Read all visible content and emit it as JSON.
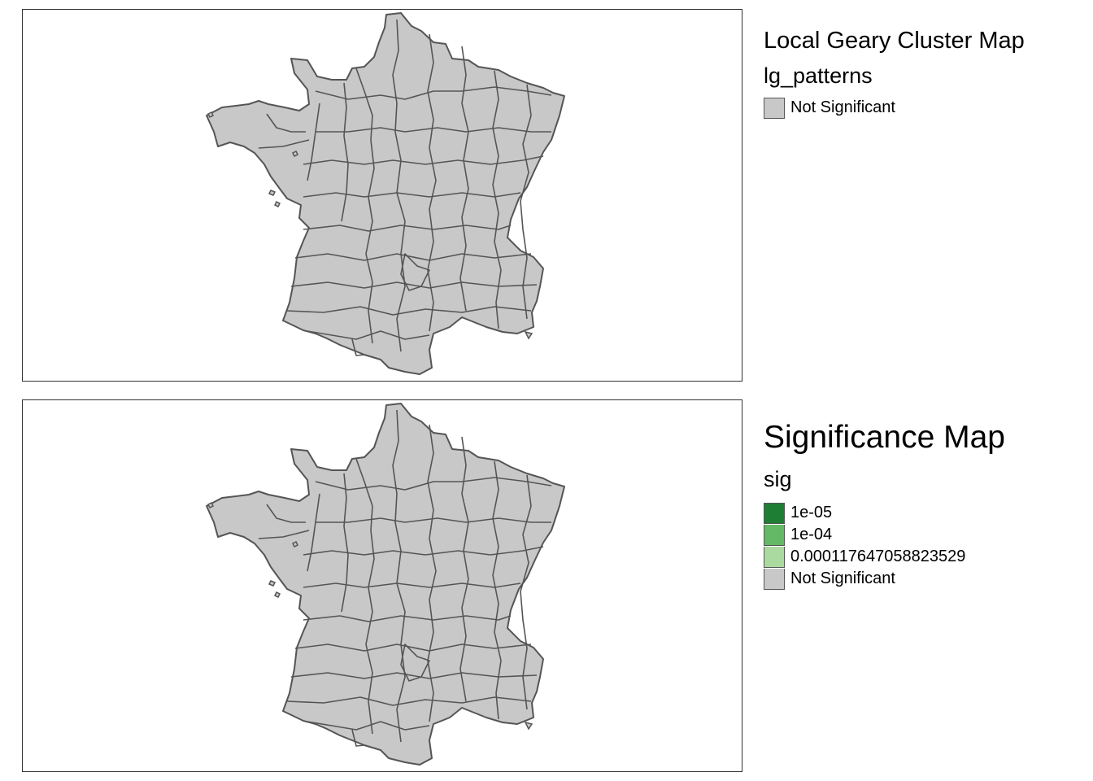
{
  "maps": [
    {
      "title": "Local Geary Cluster Map",
      "variable": "lg_patterns",
      "legend": [
        {
          "label": "Not Significant",
          "color": "#c8c8c8"
        }
      ]
    },
    {
      "title": "Significance Map",
      "variable": "sig",
      "legend": [
        {
          "label": "1e-05",
          "color": "#1e7e34"
        },
        {
          "label": "1e-04",
          "color": "#63b965"
        },
        {
          "label": "0.000117647058823529",
          "color": "#aadaa0"
        },
        {
          "label": "Not Significant",
          "color": "#c8c8c8"
        }
      ]
    }
  ],
  "style": {
    "region_fill": "#c8c8c8",
    "region_stroke": "#555555"
  }
}
